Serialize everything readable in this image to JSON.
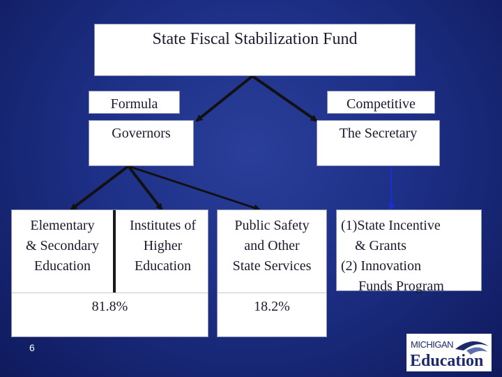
{
  "title": "State Fiscal Stabilization Fund",
  "branches": {
    "formula": "Formula",
    "competitive": "Competitive"
  },
  "administrators": {
    "governors": "Governors",
    "secretary": "The Secretary"
  },
  "allocations": {
    "education_lines": [
      "Elementary",
      "& Secondary",
      "Education"
    ],
    "higher_ed_lines": [
      "Institutes of",
      "Higher",
      "Education"
    ],
    "education_percent": "81.8%",
    "public_safety_lines": [
      "Public Safety",
      "and Other",
      "State Services"
    ],
    "public_safety_percent": "18.2%",
    "competitive_program_lines": [
      "(1)State Incentive",
      "    & Grants",
      "(2) Innovation",
      "     Funds Program"
    ]
  },
  "slide_number": "6",
  "logo": {
    "top_text": "MICHIGAN",
    "bottom_text": "Education"
  },
  "colors": {
    "background": "#1d2f86",
    "box_fill": "#ffffff",
    "connector": "#111111",
    "secretary_arrow": "#1a2fd0"
  }
}
